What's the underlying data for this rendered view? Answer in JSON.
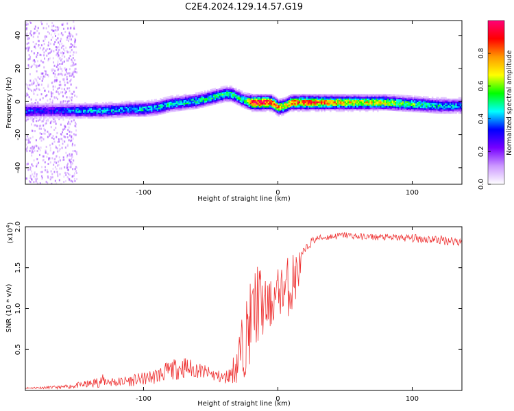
{
  "title": "C2E4.2024.129.14.57.G19",
  "colors": {
    "snr_line": "#ee3333",
    "colormap": [
      "#ffffff",
      "#cc99ff",
      "#7700ff",
      "#0000ff",
      "#00ffff",
      "#00ff00",
      "#ffff00",
      "#ff9900",
      "#ff0000",
      "#ff0077"
    ]
  },
  "chart_data": [
    {
      "type": "heatmap",
      "xlabel": "Height of straight line (km)",
      "ylabel": "Frequency (Hz)",
      "xlim": [
        -188,
        137
      ],
      "ylim": [
        -50,
        49
      ],
      "xticks": [
        -100,
        0,
        100
      ],
      "xtick_labels": [
        "-100",
        "0",
        "100"
      ],
      "yticks": [
        -40,
        -20,
        0,
        20,
        40
      ],
      "ytick_labels": [
        "-40",
        "-20",
        "0",
        "20",
        "40"
      ],
      "ridge": {
        "x": [
          -188,
          -170,
          -150,
          -130,
          -110,
          -100,
          -90,
          -80,
          -70,
          -60,
          -50,
          -45,
          -40,
          -35,
          -30,
          -25,
          -20,
          -15,
          -10,
          -5,
          0,
          5,
          10,
          20,
          40,
          60,
          80,
          100,
          120,
          137
        ],
        "freq": [
          -5,
          -5,
          -5,
          -5,
          -4,
          -4,
          -3,
          -1,
          0,
          1,
          3,
          4,
          5,
          5,
          3,
          1,
          0,
          0,
          0,
          0,
          -3,
          -2,
          0,
          0,
          0,
          0,
          0,
          -1,
          -2,
          -2
        ],
        "amplitude": [
          0.35,
          0.3,
          0.4,
          0.42,
          0.42,
          0.45,
          0.45,
          0.45,
          0.45,
          0.5,
          0.5,
          0.5,
          0.5,
          0.5,
          0.5,
          0.5,
          0.9,
          0.95,
          0.9,
          0.85,
          0.8,
          0.7,
          0.8,
          0.85,
          0.75,
          0.7,
          0.65,
          0.55,
          0.45,
          0.4
        ]
      },
      "noise_region_x": [
        -188,
        -150
      ],
      "colorbar": {
        "label": "Normalized spectral amplitude",
        "range": [
          0,
          1
        ],
        "ticks": [
          0.0,
          0.2,
          0.4,
          0.6,
          0.8
        ],
        "tick_labels": [
          "0.0",
          "0.2",
          "0.4",
          "0.6",
          "0.8"
        ]
      }
    },
    {
      "type": "line",
      "xlabel": "Height of straight line (km)",
      "ylabel": "SNR (10 * v/v)",
      "exponent_label": "(x10",
      "exponent_power": "4",
      "exponent_close": ")",
      "xlim": [
        -188,
        137
      ],
      "ylim": [
        0,
        2.0
      ],
      "xticks": [
        -100,
        0,
        100
      ],
      "xtick_labels": [
        "-100",
        "0",
        "100"
      ],
      "yticks": [
        0.5,
        1.0,
        1.5,
        2.0
      ],
      "ytick_labels": [
        "0.5",
        "1.0",
        "1.5",
        "2.0"
      ],
      "series": [
        {
          "x": [
            -188,
            -160,
            -140,
            -130,
            -120,
            -100,
            -90,
            -80,
            -70,
            -60,
            -50,
            -40,
            -35,
            -30,
            -25,
            -20,
            -15,
            -10,
            -5,
            0,
            5,
            10,
            15,
            20,
            25,
            30,
            40,
            50,
            60,
            80,
            100,
            120,
            137
          ],
          "y": [
            0.03,
            0.04,
            0.08,
            0.12,
            0.1,
            0.14,
            0.18,
            0.25,
            0.28,
            0.25,
            0.2,
            0.15,
            0.2,
            0.35,
            0.6,
            0.85,
            1.1,
            1.0,
            1.05,
            1.2,
            1.25,
            1.3,
            1.45,
            1.7,
            1.82,
            1.86,
            1.88,
            1.9,
            1.88,
            1.87,
            1.86,
            1.84,
            1.82
          ],
          "noise": [
            0.01,
            0.02,
            0.05,
            0.08,
            0.06,
            0.08,
            0.1,
            0.12,
            0.14,
            0.1,
            0.08,
            0.08,
            0.1,
            0.3,
            0.45,
            0.5,
            0.55,
            0.35,
            0.3,
            0.3,
            0.3,
            0.45,
            0.25,
            0.06,
            0.05,
            0.04,
            0.04,
            0.04,
            0.04,
            0.04,
            0.05,
            0.06,
            0.06
          ]
        }
      ]
    }
  ]
}
